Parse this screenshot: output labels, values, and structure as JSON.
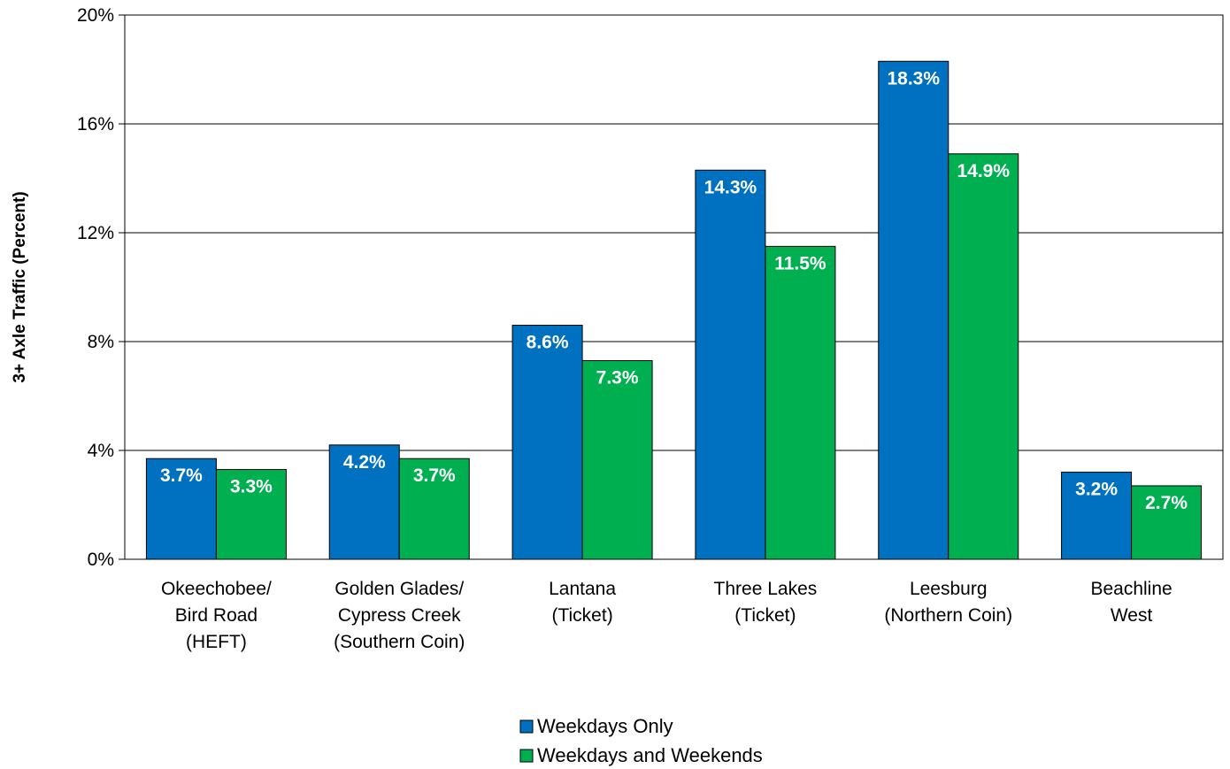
{
  "colors": {
    "weekdays_only": "#0070C0",
    "weekdays_and_weekends": "#00B050",
    "gridline": "#000000",
    "plot_border": "#000000"
  },
  "chart_data": {
    "type": "bar",
    "title": "",
    "xlabel": "",
    "ylabel": "3+ Axle Traffic (Percent)",
    "ylim": [
      0,
      20
    ],
    "yticks": [
      0,
      4,
      8,
      12,
      16,
      20
    ],
    "ytick_labels": [
      "0%",
      "4%",
      "8%",
      "12%",
      "16%",
      "20%"
    ],
    "grid": true,
    "legend_position": "bottom-center",
    "categories": [
      [
        "Okeechobee/",
        "Bird Road",
        "(HEFT)"
      ],
      [
        "Golden Glades/",
        "Cypress Creek",
        "(Southern Coin)"
      ],
      [
        "Lantana",
        "(Ticket)"
      ],
      [
        "Three Lakes",
        "(Ticket)"
      ],
      [
        "Leesburg",
        "(Northern Coin)"
      ],
      [
        "Beachline",
        "West"
      ]
    ],
    "series": [
      {
        "name": "Weekdays Only",
        "color_key": "weekdays_only",
        "values": [
          3.7,
          4.2,
          8.6,
          14.3,
          18.3,
          3.2
        ],
        "labels": [
          "3.7%",
          "4.2%",
          "8.6%",
          "14.3%",
          "18.3%",
          "3.2%"
        ]
      },
      {
        "name": "Weekdays and Weekends",
        "color_key": "weekdays_and_weekends",
        "values": [
          3.3,
          3.7,
          7.3,
          11.5,
          14.9,
          2.7
        ],
        "labels": [
          "3.3%",
          "3.7%",
          "7.3%",
          "11.5%",
          "14.9%",
          "2.7%"
        ]
      }
    ]
  }
}
